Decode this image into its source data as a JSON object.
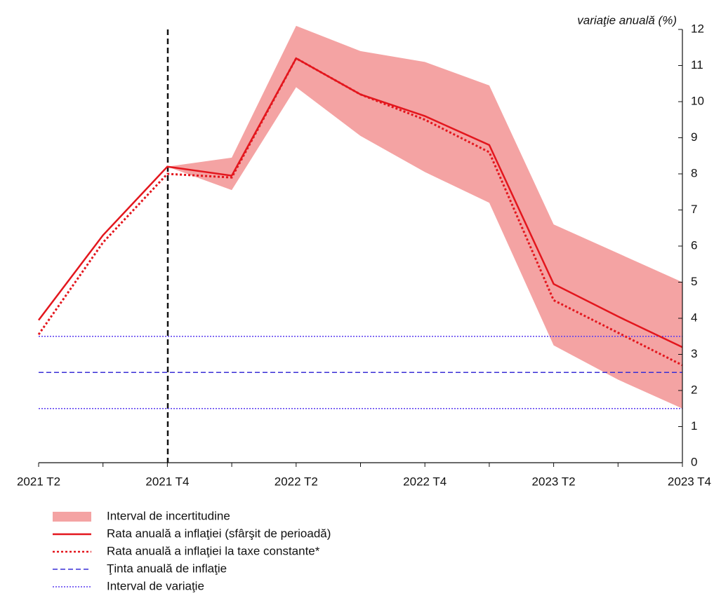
{
  "chart_data": {
    "type": "line",
    "y_axis_label": "variaţie anuală (%)",
    "categories": [
      "2021 T2",
      null,
      "2021 T4",
      null,
      "2022 T2",
      null,
      "2022 T4",
      null,
      "2023 T2",
      null,
      "2023 T4"
    ],
    "ylim": [
      0,
      12
    ],
    "yticks": [
      0,
      1,
      2,
      3,
      4,
      5,
      6,
      7,
      8,
      9,
      10,
      11,
      12
    ],
    "band": {
      "name": "Interval de incertitudine",
      "color": "#f4a3a3",
      "lower": [
        null,
        null,
        8.2,
        7.55,
        10.4,
        9.05,
        8.05,
        7.2,
        3.25,
        2.3,
        1.5
      ],
      "upper": [
        null,
        null,
        8.2,
        8.45,
        12.1,
        11.4,
        11.1,
        10.45,
        6.6,
        5.8,
        5.0
      ]
    },
    "series": [
      {
        "name": "Rata anuală a inflaţiei (sfârşit de perioadă)",
        "color": "#e3161d",
        "style": "solid",
        "values": [
          3.95,
          6.3,
          8.2,
          7.95,
          11.2,
          10.2,
          9.6,
          8.8,
          4.95,
          4.05,
          3.2
        ]
      },
      {
        "name": "Rata anuală a inflaţiei la taxe constante*",
        "color": "#e3161d",
        "style": "dotted",
        "values": [
          3.55,
          6.1,
          8.0,
          7.9,
          11.2,
          10.2,
          9.5,
          8.6,
          4.5,
          3.6,
          2.7
        ]
      }
    ],
    "reference_lines": [
      {
        "name": "Ţinta anuală de inflaţie",
        "color": "#3a2fd6",
        "style": "dashed",
        "value": 2.5
      },
      {
        "name": "Interval de variaţie",
        "color": "#5a3cf0",
        "style": "dotted",
        "value": 3.5
      },
      {
        "value": 1.5,
        "color": "#5a3cf0",
        "style": "dotted"
      }
    ]
  }
}
